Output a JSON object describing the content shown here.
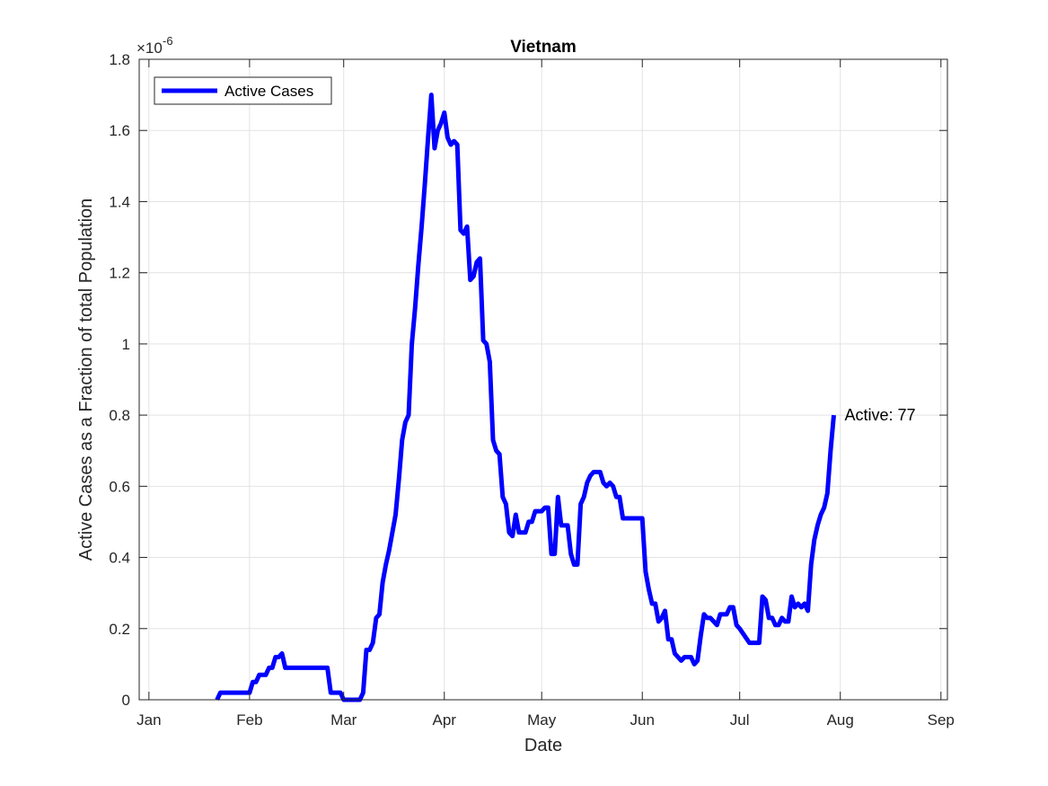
{
  "chart_data": {
    "type": "line",
    "title": "Vietnam",
    "xlabel": "Date",
    "ylabel": "Active Cases as a Fraction of total Population",
    "y_exponent_label": "×10",
    "y_exponent_power": "-6",
    "x_ticks": [
      "Jan",
      "Feb",
      "Mar",
      "Apr",
      "May",
      "Jun",
      "Jul",
      "Aug",
      "Sep"
    ],
    "x_tick_dates": [
      "2020-01-01",
      "2020-02-01",
      "2020-03-01",
      "2020-04-01",
      "2020-05-01",
      "2020-06-01",
      "2020-07-01",
      "2020-08-01",
      "2020-09-01"
    ],
    "xlim": [
      "2019-12-29",
      "2020-09-03"
    ],
    "y_ticks": [
      0,
      0.2,
      0.4,
      0.6,
      0.8,
      1,
      1.2,
      1.4,
      1.6,
      1.8
    ],
    "y_tick_labels": [
      "0",
      "0.2",
      "0.4",
      "0.6",
      "0.8",
      "1",
      "1.2",
      "1.4",
      "1.6",
      "1.8"
    ],
    "ylim": [
      0,
      1.8
    ],
    "y_scale": "1e-6",
    "grid": true,
    "legend": {
      "position": "top-left",
      "entries": [
        "Active Cases"
      ]
    },
    "series": [
      {
        "name": "Active Cases",
        "color": "#0000ff",
        "x": [
          "2020-01-22",
          "2020-01-23",
          "2020-01-24",
          "2020-01-31",
          "2020-02-01",
          "2020-02-02",
          "2020-02-03",
          "2020-02-04",
          "2020-02-05",
          "2020-02-06",
          "2020-02-07",
          "2020-02-08",
          "2020-02-09",
          "2020-02-10",
          "2020-02-11",
          "2020-02-12",
          "2020-02-13",
          "2020-02-14",
          "2020-02-15",
          "2020-02-20",
          "2020-02-25",
          "2020-02-26",
          "2020-02-27",
          "2020-02-28",
          "2020-02-29",
          "2020-03-01",
          "2020-03-02",
          "2020-03-05",
          "2020-03-06",
          "2020-03-07",
          "2020-03-08",
          "2020-03-09",
          "2020-03-10",
          "2020-03-11",
          "2020-03-12",
          "2020-03-13",
          "2020-03-14",
          "2020-03-15",
          "2020-03-16",
          "2020-03-17",
          "2020-03-18",
          "2020-03-19",
          "2020-03-20",
          "2020-03-21",
          "2020-03-22",
          "2020-03-23",
          "2020-03-24",
          "2020-03-25",
          "2020-03-26",
          "2020-03-27",
          "2020-03-28",
          "2020-03-29",
          "2020-03-30",
          "2020-03-31",
          "2020-04-01",
          "2020-04-02",
          "2020-04-03",
          "2020-04-04",
          "2020-04-05",
          "2020-04-06",
          "2020-04-07",
          "2020-04-08",
          "2020-04-09",
          "2020-04-10",
          "2020-04-11",
          "2020-04-12",
          "2020-04-13",
          "2020-04-14",
          "2020-04-15",
          "2020-04-16",
          "2020-04-17",
          "2020-04-18",
          "2020-04-19",
          "2020-04-20",
          "2020-04-21",
          "2020-04-22",
          "2020-04-23",
          "2020-04-24",
          "2020-04-25",
          "2020-04-26",
          "2020-04-27",
          "2020-04-28",
          "2020-04-29",
          "2020-04-30",
          "2020-05-01",
          "2020-05-02",
          "2020-05-03",
          "2020-05-04",
          "2020-05-05",
          "2020-05-06",
          "2020-05-07",
          "2020-05-08",
          "2020-05-09",
          "2020-05-10",
          "2020-05-11",
          "2020-05-12",
          "2020-05-13",
          "2020-05-14",
          "2020-05-15",
          "2020-05-16",
          "2020-05-17",
          "2020-05-18",
          "2020-05-19",
          "2020-05-20",
          "2020-05-21",
          "2020-05-22",
          "2020-05-23",
          "2020-05-24",
          "2020-05-25",
          "2020-05-26",
          "2020-05-27",
          "2020-05-28",
          "2020-06-01",
          "2020-06-02",
          "2020-06-03",
          "2020-06-04",
          "2020-06-05",
          "2020-06-06",
          "2020-06-07",
          "2020-06-08",
          "2020-06-09",
          "2020-06-10",
          "2020-06-11",
          "2020-06-12",
          "2020-06-13",
          "2020-06-14",
          "2020-06-15",
          "2020-06-16",
          "2020-06-17",
          "2020-06-18",
          "2020-06-19",
          "2020-06-20",
          "2020-06-21",
          "2020-06-22",
          "2020-06-23",
          "2020-06-24",
          "2020-06-25",
          "2020-06-26",
          "2020-06-27",
          "2020-06-28",
          "2020-06-29",
          "2020-06-30",
          "2020-07-01",
          "2020-07-04",
          "2020-07-05",
          "2020-07-06",
          "2020-07-07",
          "2020-07-08",
          "2020-07-09",
          "2020-07-10",
          "2020-07-11",
          "2020-07-12",
          "2020-07-13",
          "2020-07-14",
          "2020-07-15",
          "2020-07-16",
          "2020-07-17",
          "2020-07-18",
          "2020-07-19",
          "2020-07-20",
          "2020-07-21",
          "2020-07-22",
          "2020-07-23",
          "2020-07-24",
          "2020-07-25",
          "2020-07-26",
          "2020-07-27",
          "2020-07-28",
          "2020-07-29",
          "2020-07-30"
        ],
        "y": [
          0,
          0.02,
          0.02,
          0.02,
          0.02,
          0.05,
          0.05,
          0.07,
          0.07,
          0.07,
          0.09,
          0.09,
          0.12,
          0.12,
          0.13,
          0.09,
          0.09,
          0.09,
          0.09,
          0.09,
          0.09,
          0.02,
          0.02,
          0.02,
          0.02,
          0,
          0,
          0,
          0,
          0.02,
          0.14,
          0.14,
          0.16,
          0.23,
          0.24,
          0.33,
          0.38,
          0.42,
          0.47,
          0.52,
          0.62,
          0.73,
          0.78,
          0.8,
          1.0,
          1.1,
          1.22,
          1.33,
          1.45,
          1.58,
          1.7,
          1.55,
          1.6,
          1.62,
          1.65,
          1.58,
          1.56,
          1.57,
          1.56,
          1.32,
          1.31,
          1.33,
          1.18,
          1.19,
          1.23,
          1.24,
          1.01,
          1.0,
          0.95,
          0.73,
          0.7,
          0.69,
          0.57,
          0.55,
          0.47,
          0.46,
          0.52,
          0.47,
          0.47,
          0.47,
          0.5,
          0.5,
          0.53,
          0.53,
          0.53,
          0.54,
          0.54,
          0.41,
          0.41,
          0.57,
          0.49,
          0.49,
          0.49,
          0.41,
          0.38,
          0.38,
          0.55,
          0.57,
          0.61,
          0.63,
          0.64,
          0.64,
          0.64,
          0.61,
          0.6,
          0.61,
          0.6,
          0.57,
          0.57,
          0.51,
          0.51,
          0.51,
          0.51,
          0.36,
          0.31,
          0.27,
          0.27,
          0.22,
          0.23,
          0.25,
          0.17,
          0.17,
          0.13,
          0.12,
          0.11,
          0.12,
          0.12,
          0.12,
          0.1,
          0.11,
          0.18,
          0.24,
          0.23,
          0.23,
          0.22,
          0.21,
          0.24,
          0.24,
          0.24,
          0.26,
          0.26,
          0.21,
          0.2,
          0.16,
          0.16,
          0.16,
          0.16,
          0.29,
          0.28,
          0.23,
          0.23,
          0.21,
          0.21,
          0.23,
          0.22,
          0.22,
          0.29,
          0.26,
          0.27,
          0.26,
          0.27,
          0.25,
          0.38,
          0.45,
          0.49,
          0.52,
          0.54,
          0.58,
          0.7,
          0.8
        ]
      }
    ],
    "annotations": [
      {
        "text": "Active: 77",
        "x": "2020-07-30",
        "y": 0.8
      }
    ]
  }
}
